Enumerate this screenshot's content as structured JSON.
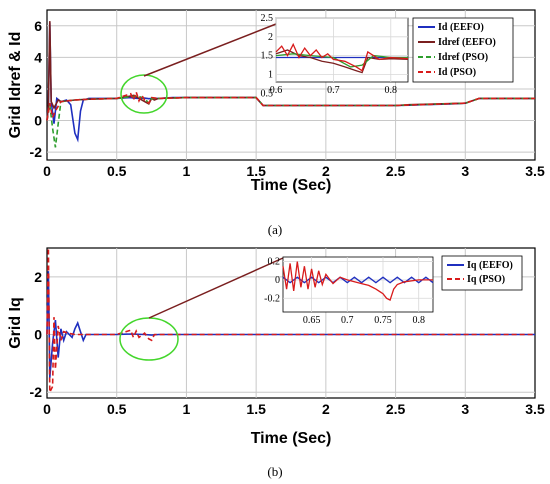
{
  "chart_data": [
    {
      "type": "line",
      "panel_label": "(a)",
      "xlabel": "Time (Sec)",
      "ylabel": "Grid Idref & Id",
      "xlim": [
        0,
        3.5
      ],
      "ylim": [
        -2.5,
        7
      ],
      "xticks": [
        "0",
        "0.5",
        "1",
        "1.5",
        "2",
        "2.5",
        "3",
        "3.5"
      ],
      "yticks": [
        "6",
        "4",
        "2",
        "0",
        "-2"
      ],
      "grid": true,
      "legend_position": "top-right",
      "series": [
        {
          "name": "Id (EEFO)",
          "color": "#1f2fbf",
          "dash": "solid",
          "x": [
            0,
            0.01,
            0.02,
            0.03,
            0.05,
            0.07,
            0.1,
            0.14,
            0.17,
            0.2,
            0.22,
            0.24,
            0.26,
            0.3,
            0.4,
            0.5,
            0.6,
            0.62,
            0.66,
            0.7,
            0.73,
            0.76,
            0.8,
            0.9,
            1.0,
            1.2,
            1.4,
            1.5,
            1.55,
            2.0,
            2.5,
            2.6,
            2.7,
            2.9,
            3.0,
            3.1,
            3.5
          ],
          "y": [
            0,
            1.0,
            6.2,
            1.2,
            -0.2,
            1.4,
            1.2,
            1.3,
            1.0,
            -0.8,
            -1.2,
            0.6,
            1.3,
            1.4,
            1.4,
            1.4,
            1.45,
            1.42,
            1.4,
            1.42,
            1.38,
            1.4,
            1.4,
            1.45,
            1.45,
            1.45,
            1.45,
            1.45,
            0.95,
            0.95,
            0.95,
            0.97,
            1.0,
            1.05,
            1.1,
            1.4,
            1.4
          ]
        },
        {
          "name": "Idref (EEFO)",
          "color": "#7a1f1f",
          "dash": "solid",
          "x": [
            0,
            0.01,
            0.02,
            0.03,
            0.05,
            0.08,
            0.1,
            0.2,
            0.3,
            0.5,
            0.6,
            0.62,
            0.65,
            0.7,
            0.73,
            0.75,
            0.77,
            0.8,
            1.0,
            1.5,
            1.55,
            2.5,
            2.6,
            3.0,
            3.1,
            3.5
          ],
          "y": [
            0,
            1.0,
            6.3,
            1.2,
            0.8,
            1.3,
            1.2,
            1.3,
            1.35,
            1.4,
            1.55,
            1.6,
            1.45,
            1.2,
            1.05,
            1.4,
            1.3,
            1.4,
            1.45,
            1.45,
            0.95,
            0.95,
            1.0,
            1.1,
            1.4,
            1.4
          ]
        },
        {
          "name": "Idref (PSO)",
          "color": "#2e9e2e",
          "dash": "dash",
          "x": [
            0,
            0.02,
            0.04,
            0.06,
            0.08,
            0.1,
            0.2,
            0.3,
            0.5,
            0.6,
            0.65,
            0.7,
            0.73,
            0.75,
            0.8,
            1.0,
            1.5,
            1.55,
            2.5,
            3.0,
            3.1,
            3.5
          ],
          "y": [
            0,
            1.0,
            -0.5,
            -1.7,
            -0.2,
            1.2,
            1.3,
            1.35,
            1.4,
            1.5,
            1.55,
            1.4,
            1.1,
            1.4,
            1.4,
            1.45,
            1.45,
            0.95,
            0.95,
            1.1,
            1.4,
            1.4
          ]
        },
        {
          "name": "Id (PSO)",
          "color": "#d81b1b",
          "dash": "dash",
          "x": [
            0,
            0.02,
            0.04,
            0.06,
            0.1,
            0.2,
            0.3,
            0.5,
            0.6,
            0.62,
            0.64,
            0.66,
            0.68,
            0.7,
            0.73,
            0.75,
            0.8,
            1.0,
            1.5,
            1.55,
            2.5,
            3.0,
            3.1,
            3.5
          ],
          "y": [
            0,
            1.1,
            0.2,
            0.6,
            1.2,
            1.3,
            1.35,
            1.4,
            1.7,
            1.3,
            1.8,
            1.25,
            1.6,
            1.3,
            1.1,
            1.45,
            1.4,
            1.45,
            1.45,
            0.95,
            0.95,
            1.1,
            1.4,
            1.4
          ]
        }
      ],
      "inset": {
        "xlim": [
          0.6,
          0.83
        ],
        "ylim": [
          0.8,
          2.5
        ],
        "xticks": [
          "0.6",
          "0.7",
          "0.8"
        ],
        "yticks": [
          "2.5",
          "2",
          "1.5",
          "1",
          "0.5"
        ],
        "series": [
          {
            "name": "Id (EEFO)",
            "color": "#1f2fbf",
            "x": [
              0.6,
              0.83
            ],
            "y": [
              1.45,
              1.45
            ]
          },
          {
            "name": "Idref (EEFO)",
            "color": "#7a1f1f",
            "x": [
              0.6,
              0.62,
              0.64,
              0.66,
              0.68,
              0.7,
              0.72,
              0.74,
              0.75,
              0.76,
              0.78,
              0.8,
              0.83
            ],
            "y": [
              1.55,
              1.65,
              1.5,
              1.45,
              1.35,
              1.3,
              1.2,
              1.1,
              1.05,
              1.45,
              1.4,
              1.42,
              1.4
            ]
          },
          {
            "name": "Idref (PSO)",
            "color": "#2e9e2e",
            "x": [
              0.6,
              0.63,
              0.66,
              0.7,
              0.73,
              0.75,
              0.77,
              0.8,
              0.83
            ],
            "y": [
              1.5,
              1.55,
              1.5,
              1.45,
              1.2,
              1.25,
              1.5,
              1.45,
              1.45
            ]
          },
          {
            "name": "Id (PSO)",
            "color": "#d81b1b",
            "x": [
              0.6,
              0.61,
              0.62,
              0.63,
              0.64,
              0.65,
              0.66,
              0.67,
              0.68,
              0.69,
              0.7,
              0.72,
              0.74,
              0.75,
              0.76,
              0.78,
              0.8,
              0.83
            ],
            "y": [
              1.6,
              1.75,
              1.5,
              1.8,
              1.45,
              1.7,
              1.5,
              1.65,
              1.45,
              1.55,
              1.4,
              1.35,
              1.2,
              1.1,
              1.6,
              1.4,
              1.45,
              1.42
            ]
          }
        ]
      }
    },
    {
      "type": "line",
      "panel_label": "(b)",
      "xlabel": "Time (Sec)",
      "ylabel": "Grid Iq",
      "xlim": [
        0,
        3.5
      ],
      "ylim": [
        -2.2,
        3.0
      ],
      "xticks": [
        "0",
        "0.5",
        "1",
        "1.5",
        "2",
        "2.5",
        "3",
        "3.5"
      ],
      "yticks": [
        "2",
        "0",
        "-2"
      ],
      "grid": true,
      "legend_position": "top-right",
      "series": [
        {
          "name": "Iq (EEFO)",
          "color": "#1f2fbf",
          "dash": "solid",
          "x": [
            0,
            0.01,
            0.02,
            0.04,
            0.06,
            0.08,
            0.1,
            0.12,
            0.14,
            0.16,
            0.18,
            0.2,
            0.22,
            0.24,
            0.26,
            0.28,
            0.3,
            0.5,
            0.6,
            0.7,
            0.75,
            0.8,
            1.0,
            3.5
          ],
          "y": [
            0,
            2.2,
            -1.5,
            -0.3,
            0.5,
            -0.8,
            0.2,
            -0.2,
            0.1,
            0.0,
            -0.1,
            0.2,
            0.4,
            0.1,
            -0.2,
            0.0,
            0.0,
            0.0,
            0.02,
            0.0,
            -0.02,
            0.0,
            0.0,
            0.0
          ]
        },
        {
          "name": "Iq (PSO)",
          "color": "#d81b1b",
          "dash": "dash",
          "x": [
            0,
            0.01,
            0.02,
            0.04,
            0.05,
            0.06,
            0.08,
            0.1,
            0.12,
            0.15,
            0.2,
            0.5,
            0.6,
            0.62,
            0.64,
            0.66,
            0.7,
            0.73,
            0.75,
            0.77,
            0.8,
            1.0,
            3.5
          ],
          "y": [
            0,
            3.0,
            -2.0,
            -1.8,
            0.6,
            -1.2,
            0.3,
            -0.2,
            0.1,
            0.05,
            0.0,
            0.0,
            0.15,
            -0.1,
            0.12,
            -0.1,
            0.05,
            -0.15,
            -0.2,
            0.0,
            0.0,
            0.0,
            0.0
          ]
        }
      ],
      "inset": {
        "xlim": [
          0.61,
          0.82
        ],
        "ylim": [
          -0.35,
          0.25
        ],
        "xticks": [
          "0.65",
          "0.7",
          "0.75",
          "0.8"
        ],
        "yticks": [
          "0.2",
          "0",
          "-0.2"
        ],
        "series": [
          {
            "name": "Iq (EEFO)",
            "color": "#1f2fbf",
            "x": [
              0.61,
              0.62,
              0.63,
              0.64,
              0.65,
              0.66,
              0.67,
              0.68,
              0.69,
              0.7,
              0.71,
              0.72,
              0.73,
              0.74,
              0.75,
              0.76,
              0.77,
              0.78,
              0.79,
              0.8,
              0.81,
              0.82
            ],
            "y": [
              0.03,
              -0.03,
              0.03,
              -0.03,
              0.03,
              -0.03,
              0.03,
              -0.03,
              0.03,
              -0.03,
              0.03,
              -0.03,
              0.03,
              -0.03,
              0.03,
              -0.03,
              0.03,
              -0.03,
              0.03,
              -0.03,
              0.03,
              -0.03
            ]
          },
          {
            "name": "Iq (PSO)",
            "color": "#d81b1b",
            "x": [
              0.61,
              0.615,
              0.62,
              0.625,
              0.63,
              0.635,
              0.64,
              0.645,
              0.65,
              0.655,
              0.66,
              0.665,
              0.67,
              0.68,
              0.69,
              0.7,
              0.71,
              0.72,
              0.73,
              0.74,
              0.75,
              0.755,
              0.76,
              0.765,
              0.77,
              0.78,
              0.8,
              0.82
            ],
            "y": [
              0.15,
              -0.1,
              0.18,
              -0.12,
              0.2,
              -0.08,
              0.15,
              -0.1,
              0.12,
              -0.08,
              0.1,
              -0.05,
              0.06,
              -0.04,
              0.03,
              0.0,
              -0.02,
              -0.04,
              -0.06,
              -0.1,
              -0.15,
              -0.2,
              -0.22,
              -0.1,
              -0.05,
              -0.02,
              0.0,
              0.0
            ]
          }
        ]
      }
    }
  ],
  "colors": {
    "highlight_circle": "#44d62c",
    "connector_line": "#7a1f1f"
  }
}
